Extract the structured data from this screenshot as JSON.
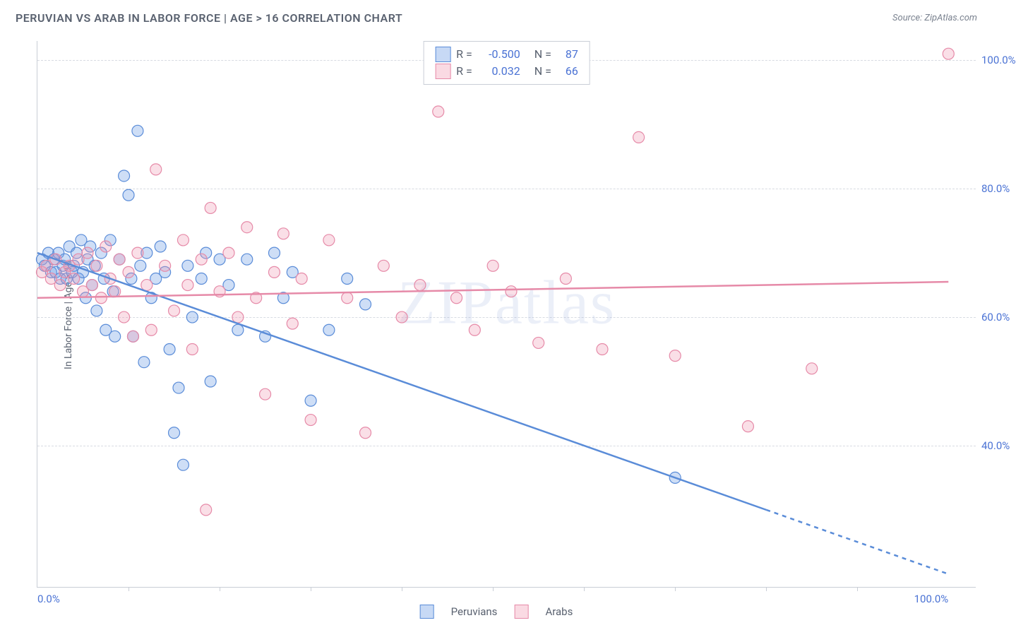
{
  "title": "PERUVIAN VS ARAB IN LABOR FORCE | AGE > 16 CORRELATION CHART",
  "source": "Source: ZipAtlas.com",
  "watermark": "ZIPatlas",
  "y_axis_title": "In Labor Force | Age > 16",
  "series": [
    {
      "key": "peruvian",
      "label": "Peruvians",
      "color_fill": "rgba(115,160,230,0.35)",
      "color_stroke": "#5a8cd8",
      "r_value": "-0.500",
      "n_value": "87",
      "trend": {
        "x1": 0,
        "y1": 70,
        "x2": 80,
        "y2": 30,
        "dash_x2": 100,
        "dash_y2": 20
      },
      "points": [
        [
          0.5,
          69
        ],
        [
          0.8,
          68
        ],
        [
          1.2,
          70
        ],
        [
          1.5,
          67
        ],
        [
          1.8,
          69
        ],
        [
          2,
          67
        ],
        [
          2.3,
          70
        ],
        [
          2.5,
          66
        ],
        [
          2.8,
          68
        ],
        [
          3,
          69
        ],
        [
          3.2,
          66
        ],
        [
          3.5,
          71
        ],
        [
          3.8,
          67
        ],
        [
          4,
          68
        ],
        [
          4.3,
          70
        ],
        [
          4.5,
          66
        ],
        [
          4.8,
          72
        ],
        [
          5,
          67
        ],
        [
          5.3,
          63
        ],
        [
          5.5,
          69
        ],
        [
          5.8,
          71
        ],
        [
          6,
          65
        ],
        [
          6.3,
          68
        ],
        [
          6.5,
          61
        ],
        [
          7,
          70
        ],
        [
          7.3,
          66
        ],
        [
          7.5,
          58
        ],
        [
          8,
          72
        ],
        [
          8.3,
          64
        ],
        [
          8.5,
          57
        ],
        [
          9,
          69
        ],
        [
          9.5,
          82
        ],
        [
          10,
          79
        ],
        [
          10.3,
          66
        ],
        [
          10.5,
          57
        ],
        [
          11,
          89
        ],
        [
          11.3,
          68
        ],
        [
          11.7,
          53
        ],
        [
          12,
          70
        ],
        [
          12.5,
          63
        ],
        [
          13,
          66
        ],
        [
          13.5,
          71
        ],
        [
          14,
          67
        ],
        [
          14.5,
          55
        ],
        [
          15,
          42
        ],
        [
          15.5,
          49
        ],
        [
          16,
          37
        ],
        [
          16.5,
          68
        ],
        [
          17,
          60
        ],
        [
          18,
          66
        ],
        [
          18.5,
          70
        ],
        [
          19,
          50
        ],
        [
          20,
          69
        ],
        [
          21,
          65
        ],
        [
          22,
          58
        ],
        [
          23,
          69
        ],
        [
          25,
          57
        ],
        [
          26,
          70
        ],
        [
          27,
          63
        ],
        [
          28,
          67
        ],
        [
          30,
          47
        ],
        [
          32,
          58
        ],
        [
          34,
          66
        ],
        [
          36,
          62
        ],
        [
          70,
          35
        ]
      ]
    },
    {
      "key": "arab",
      "label": "Arabs",
      "color_fill": "rgba(240,150,175,0.30)",
      "color_stroke": "#e68aa8",
      "r_value": "0.032",
      "n_value": "66",
      "trend": {
        "x1": 0,
        "y1": 63,
        "x2": 100,
        "y2": 65.5
      },
      "points": [
        [
          0.5,
          67
        ],
        [
          1,
          68
        ],
        [
          1.5,
          66
        ],
        [
          2,
          69
        ],
        [
          2.5,
          65
        ],
        [
          3,
          67
        ],
        [
          3.5,
          68
        ],
        [
          4,
          66
        ],
        [
          4.5,
          69
        ],
        [
          5,
          64
        ],
        [
          5.5,
          70
        ],
        [
          6,
          65
        ],
        [
          6.5,
          68
        ],
        [
          7,
          63
        ],
        [
          7.5,
          71
        ],
        [
          8,
          66
        ],
        [
          8.5,
          64
        ],
        [
          9,
          69
        ],
        [
          9.5,
          60
        ],
        [
          10,
          67
        ],
        [
          10.5,
          57
        ],
        [
          11,
          70
        ],
        [
          12,
          65
        ],
        [
          12.5,
          58
        ],
        [
          13,
          83
        ],
        [
          14,
          68
        ],
        [
          15,
          61
        ],
        [
          16,
          72
        ],
        [
          16.5,
          65
        ],
        [
          17,
          55
        ],
        [
          18,
          69
        ],
        [
          18.5,
          30
        ],
        [
          19,
          77
        ],
        [
          20,
          64
        ],
        [
          21,
          70
        ],
        [
          22,
          60
        ],
        [
          23,
          74
        ],
        [
          24,
          63
        ],
        [
          25,
          48
        ],
        [
          26,
          67
        ],
        [
          27,
          73
        ],
        [
          28,
          59
        ],
        [
          29,
          66
        ],
        [
          30,
          44
        ],
        [
          32,
          72
        ],
        [
          34,
          63
        ],
        [
          36,
          42
        ],
        [
          38,
          68
        ],
        [
          40,
          60
        ],
        [
          42,
          65
        ],
        [
          44,
          92
        ],
        [
          46,
          63
        ],
        [
          48,
          58
        ],
        [
          50,
          68
        ],
        [
          52,
          64
        ],
        [
          55,
          56
        ],
        [
          58,
          66
        ],
        [
          62,
          55
        ],
        [
          66,
          88
        ],
        [
          70,
          54
        ],
        [
          78,
          43
        ],
        [
          85,
          52
        ],
        [
          100,
          101
        ]
      ]
    }
  ],
  "legend_top": {
    "r_label": "R =",
    "n_label": "N ="
  },
  "y_ticks": [
    {
      "v": 100,
      "label": "100.0%"
    },
    {
      "v": 80,
      "label": "80.0%"
    },
    {
      "v": 60,
      "label": "60.0%"
    },
    {
      "v": 40,
      "label": "40.0%"
    }
  ],
  "x_ticks": [
    {
      "v": 0,
      "label": "0.0%"
    },
    {
      "v": 100,
      "label": "100.0%"
    }
  ],
  "x_minor_ticks": [
    10,
    20,
    30,
    40,
    50,
    60,
    70,
    80,
    90
  ],
  "axis": {
    "xlim": [
      0,
      103
    ],
    "ylim": [
      18,
      103
    ]
  },
  "marker_radius": 8,
  "trend_stroke_width": 2.5,
  "colors": {
    "text": "#5a6270",
    "tick": "#4a72d4",
    "grid": "#d7dbe2",
    "border": "#c9ced6",
    "background": "#ffffff"
  }
}
